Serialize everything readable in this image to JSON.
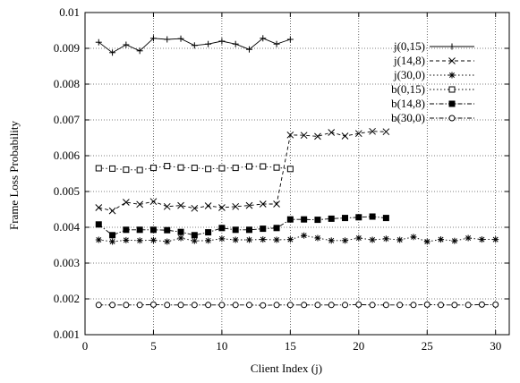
{
  "chart_data": {
    "type": "line",
    "title": "",
    "xlabel": "Client Index (j)",
    "ylabel": "Frame Loss Probability",
    "xlim": [
      0,
      31
    ],
    "ylim": [
      0.001,
      0.01
    ],
    "xticks": [
      0,
      5,
      10,
      15,
      20,
      25,
      30
    ],
    "yticks": [
      0.001,
      0.002,
      0.003,
      0.004,
      0.005,
      0.006,
      0.007,
      0.008,
      0.009,
      0.01
    ],
    "xtick_labels": [
      "0",
      "5",
      "10",
      "15",
      "20",
      "25",
      "30"
    ],
    "ytick_labels": [
      "0.001",
      "0.002",
      "0.003",
      "0.004",
      "0.005",
      "0.006",
      "0.007",
      "0.008",
      "0.009",
      "0.01"
    ],
    "grid": true,
    "legend_position": "top-right",
    "series": [
      {
        "name": "j(0,15)",
        "marker": "plus",
        "dash": "solid",
        "x": [
          1,
          2,
          3,
          4,
          5,
          6,
          7,
          8,
          9,
          10,
          11,
          12,
          13,
          14,
          15
        ],
        "y": [
          0.00917,
          0.00888,
          0.0091,
          0.00893,
          0.00928,
          0.00925,
          0.00927,
          0.00908,
          0.00912,
          0.0092,
          0.00912,
          0.00897,
          0.00928,
          0.00912,
          0.00925
        ]
      },
      {
        "name": "j(14,8)",
        "marker": "x",
        "dash": "dash",
        "x": [
          1,
          2,
          3,
          4,
          5,
          6,
          7,
          8,
          9,
          10,
          11,
          12,
          13,
          14,
          15,
          16,
          17,
          18,
          19,
          20,
          21,
          22
        ],
        "y": [
          0.00455,
          0.00446,
          0.0047,
          0.00464,
          0.00472,
          0.00458,
          0.00461,
          0.00453,
          0.0046,
          0.00455,
          0.00458,
          0.00461,
          0.00465,
          0.00465,
          0.00658,
          0.00657,
          0.00654,
          0.00665,
          0.00655,
          0.00662,
          0.00668,
          0.00667
        ]
      },
      {
        "name": "j(30,0)",
        "marker": "star",
        "dash": "dot",
        "x": [
          1,
          2,
          3,
          4,
          5,
          6,
          7,
          8,
          9,
          10,
          11,
          12,
          13,
          14,
          15,
          16,
          17,
          18,
          19,
          20,
          21,
          22,
          23,
          24,
          25,
          26,
          27,
          28,
          29,
          30
        ],
        "y": [
          0.00365,
          0.0036,
          0.00364,
          0.00363,
          0.00364,
          0.0036,
          0.0037,
          0.00362,
          0.00363,
          0.00368,
          0.00365,
          0.00365,
          0.00366,
          0.00365,
          0.00366,
          0.00377,
          0.0037,
          0.00363,
          0.00363,
          0.0037,
          0.00365,
          0.00368,
          0.00365,
          0.00373,
          0.0036,
          0.00366,
          0.00362,
          0.0037,
          0.00366,
          0.00366
        ]
      },
      {
        "name": "b(0,15)",
        "marker": "open-square",
        "dash": "dot",
        "x": [
          1,
          2,
          3,
          4,
          5,
          6,
          7,
          8,
          9,
          10,
          11,
          12,
          13,
          14,
          15
        ],
        "y": [
          0.00565,
          0.00564,
          0.00561,
          0.0056,
          0.00566,
          0.00571,
          0.00567,
          0.00566,
          0.00563,
          0.00565,
          0.00566,
          0.0057,
          0.0057,
          0.00567,
          0.00563
        ]
      },
      {
        "name": "b(14,8)",
        "marker": "filled-square",
        "dash": "dashdot",
        "x": [
          1,
          2,
          3,
          4,
          5,
          6,
          7,
          8,
          9,
          10,
          11,
          12,
          13,
          14,
          15,
          16,
          17,
          18,
          19,
          20,
          21,
          22
        ],
        "y": [
          0.00408,
          0.00378,
          0.00393,
          0.00393,
          0.00393,
          0.00392,
          0.00387,
          0.00378,
          0.00386,
          0.00398,
          0.00393,
          0.00393,
          0.00396,
          0.00398,
          0.00422,
          0.00422,
          0.00421,
          0.00424,
          0.00426,
          0.00428,
          0.0043,
          0.00426
        ]
      },
      {
        "name": "b(30,0)",
        "marker": "open-circle",
        "dash": "dashdot",
        "x": [
          1,
          2,
          3,
          4,
          5,
          6,
          7,
          8,
          9,
          10,
          11,
          12,
          13,
          14,
          15,
          16,
          17,
          18,
          19,
          20,
          21,
          22,
          23,
          24,
          25,
          26,
          27,
          28,
          29,
          30
        ],
        "y": [
          0.00183,
          0.00183,
          0.00183,
          0.00183,
          0.00184,
          0.00183,
          0.00183,
          0.00183,
          0.00183,
          0.00183,
          0.00183,
          0.00183,
          0.00182,
          0.00183,
          0.00183,
          0.00183,
          0.00183,
          0.00183,
          0.00183,
          0.00184,
          0.00183,
          0.00183,
          0.00183,
          0.00183,
          0.00184,
          0.00183,
          0.00183,
          0.00183,
          0.00184,
          0.00184
        ]
      }
    ]
  }
}
